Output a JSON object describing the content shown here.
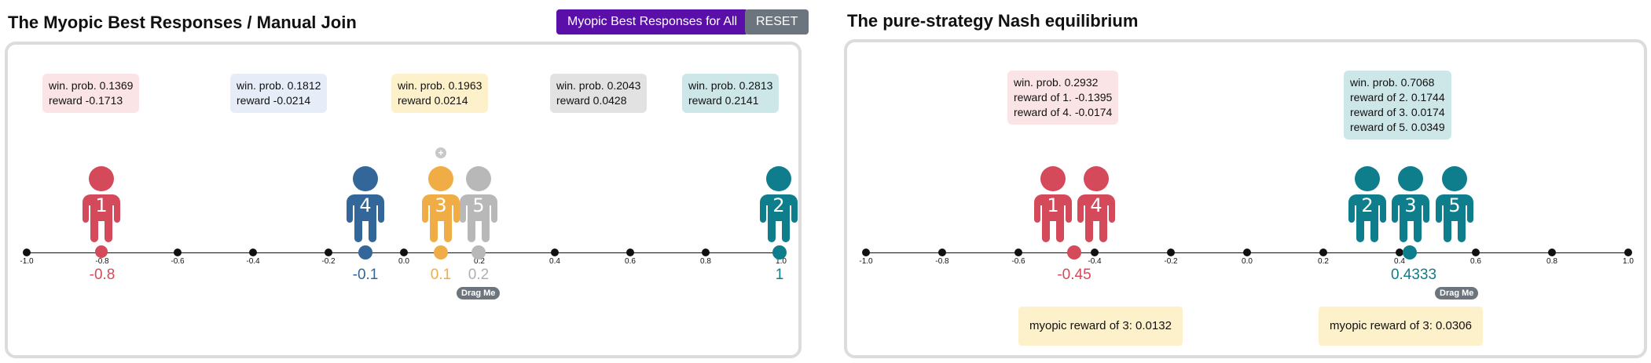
{
  "left": {
    "title": "The Myopic Best Responses / Manual Join",
    "btn_all": "Myopic Best Responses for All",
    "btn_reset": "RESET",
    "drag": "Drag Me",
    "ticks": [
      "-1.0",
      "-0.8",
      "-0.6",
      "-0.4",
      "-0.2",
      "0.0",
      "0.2",
      "0.4",
      "0.6",
      "0.8",
      "1.0"
    ],
    "info": [
      {
        "line1": "win. prob. 0.1369",
        "line2": "reward -0.1713",
        "color": "#fbe4e6"
      },
      {
        "line1": "win. prob. 0.1812",
        "line2": "reward -0.0214",
        "color": "#e6ecf8"
      },
      {
        "line1": "win. prob. 0.1963",
        "line2": "reward 0.0214",
        "color": "#fdf1cc"
      },
      {
        "line1": "win. prob. 0.2043",
        "line2": "reward 0.0428",
        "color": "#e2e2e2"
      },
      {
        "line1": "win. prob. 0.2813",
        "line2": "reward 0.2141",
        "color": "#cde6e8"
      }
    ],
    "players": [
      {
        "num": "1",
        "color": "#d44a5a",
        "pos": "-0.8"
      },
      {
        "num": "4",
        "color": "#336699",
        "pos": "-0.1"
      },
      {
        "num": "3",
        "color": "#f0ad45",
        "pos": "0.1"
      },
      {
        "num": "5",
        "color": "#b8b8b8",
        "pos": "0.2"
      },
      {
        "num": "2",
        "color": "#0e7d8c",
        "pos": "1"
      }
    ]
  },
  "right": {
    "title": "The pure-strategy Nash equilibrium",
    "drag": "Drag Me",
    "ticks": [
      "-1.0",
      "-0.8",
      "-0.6",
      "-0.4",
      "-0.2",
      "0.0",
      "0.2",
      "0.4",
      "0.6",
      "0.8",
      "1.0"
    ],
    "info": [
      {
        "lines": [
          "win. prob. 0.2932",
          "reward of 1. -0.1395",
          "reward of 4. -0.0174"
        ],
        "color": "#fbe4e6"
      },
      {
        "lines": [
          "win. prob. 0.7068",
          "reward of 2. 0.1744",
          "reward of 3. 0.0174",
          "reward of 5. 0.0349"
        ],
        "color": "#cde6e8"
      }
    ],
    "players": [
      {
        "num": "1",
        "color": "#d44a5a"
      },
      {
        "num": "4",
        "color": "#d44a5a"
      },
      {
        "num": "2",
        "color": "#0e7d8c"
      },
      {
        "num": "3",
        "color": "#0e7d8c"
      },
      {
        "num": "5",
        "color": "#0e7d8c"
      }
    ],
    "positions": [
      {
        "value": "-0.45",
        "color": "#d44a5a"
      },
      {
        "value": "0.4333",
        "color": "#0e7d8c"
      }
    ],
    "myopic": [
      "myopic reward of 3: 0.0132",
      "myopic reward of 3: 0.0306"
    ]
  }
}
